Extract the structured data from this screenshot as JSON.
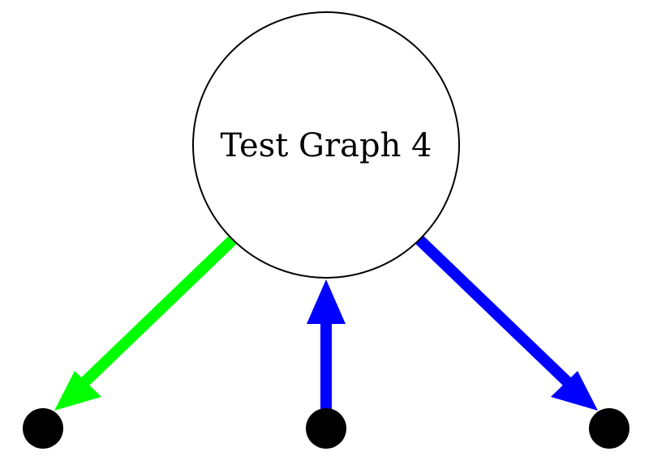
{
  "diagram": {
    "center_node": {
      "label": "Test Graph 4",
      "fill": "#ffffff",
      "stroke": "#000000"
    },
    "leaf_nodes": [
      {
        "id": "left",
        "fill": "#000000"
      },
      {
        "id": "middle",
        "fill": "#000000"
      },
      {
        "id": "right",
        "fill": "#000000"
      }
    ],
    "edges": [
      {
        "from": "center",
        "to": "left",
        "color": "#00ff00",
        "arrowhead_at": "left"
      },
      {
        "from": "middle",
        "to": "center",
        "color": "#0000ff",
        "arrowhead_at": "center"
      },
      {
        "from": "center",
        "to": "right",
        "color": "#0000ff",
        "arrowhead_at": "right"
      }
    ]
  }
}
